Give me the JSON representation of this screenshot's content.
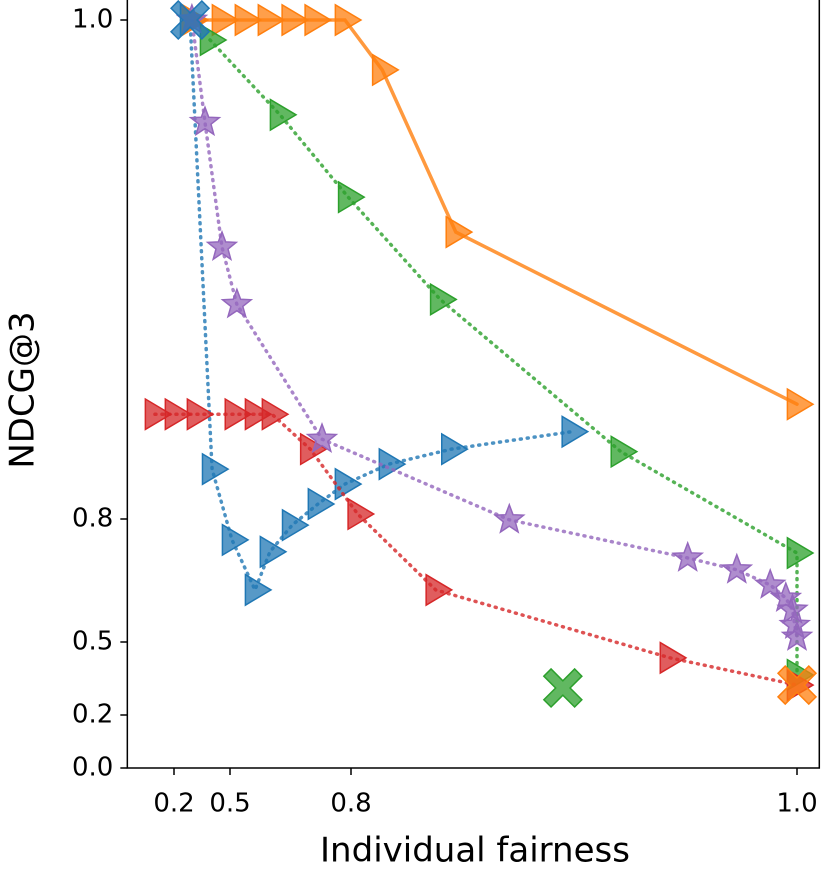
{
  "chart_data": {
    "type": "line",
    "xlabel": "Individual fairness",
    "ylabel": "NDCG@3",
    "xlim": [
      -0.05,
      1.01
    ],
    "ylim": [
      0,
      1.01
    ],
    "xticks": [
      0.2,
      0.5,
      0.8,
      {
        "value": 1,
        "label": "1.0"
      }
    ],
    "yticks": [
      {
        "value": 0,
        "label": "0.0"
      },
      0.2,
      0.5,
      0.8,
      {
        "value": 1,
        "label": "1.0"
      }
    ],
    "series": [
      {
        "color": "#1f77b4",
        "linestyle": "dotted",
        "marker": "triangle",
        "x": [
          0.286,
          0.404,
          0.505,
          0.562,
          0.599,
          0.654,
          0.718,
          0.785,
          0.817,
          0.845,
          0.899
        ],
        "values": [
          1.0,
          0.82,
          0.749,
          0.627,
          0.72,
          0.785,
          0.806,
          0.814,
          0.822,
          0.828,
          0.835
        ]
      },
      {
        "color": "#ff7f0e",
        "linestyle": "solid",
        "marker": "triangle",
        "x": [
          0.296,
          0.457,
          0.537,
          0.594,
          0.653,
          0.71,
          0.785,
          0.814,
          0.847,
          1.0
        ],
        "values": [
          1.0,
          1.0,
          1.0,
          1.0,
          1.0,
          1.0,
          1.0,
          0.98,
          0.915,
          0.846
        ]
      },
      {
        "color": "#2ca02c",
        "linestyle": "dotted",
        "marker": "triangle",
        "x": [
          0.393,
          0.624,
          0.793,
          0.84,
          0.921,
          1.0,
          1.0
        ],
        "values": [
          0.992,
          0.962,
          0.929,
          0.888,
          0.827,
          0.717,
          0.365
        ]
      },
      {
        "color": "#d62728",
        "linestyle": "dotted",
        "marker": "triangle",
        "x": [
          0.098,
          0.205,
          0.323,
          0.512,
          0.562,
          0.604,
          0.699,
          0.803,
          0.838,
          0.943,
          1.0
        ],
        "values": [
          0.842,
          0.842,
          0.842,
          0.842,
          0.842,
          0.842,
          0.828,
          0.802,
          0.627,
          0.435,
          0.323
        ]
      },
      {
        "color": "#9467bd",
        "linestyle": "dotted",
        "marker": "star",
        "x": [
          0.296,
          0.366,
          0.457,
          0.517,
          0.728,
          0.871,
          0.951,
          0.973,
          0.988,
          0.995,
          0.998,
          0.999,
          1.0
        ],
        "values": [
          1.0,
          0.959,
          0.909,
          0.886,
          0.832,
          0.798,
          0.705,
          0.676,
          0.639,
          0.607,
          0.578,
          0.541,
          0.512
        ]
      },
      {
        "color": "#1f77b4",
        "linestyle": "none",
        "marker": "x",
        "x": [
          0.286
        ],
        "values": [
          1.0
        ]
      },
      {
        "color": "#ff7f0e",
        "linestyle": "none",
        "marker": "x",
        "x": [
          1.0
        ],
        "values": [
          0.323
        ]
      },
      {
        "color": "#2ca02c",
        "linestyle": "none",
        "marker": "x",
        "x": [
          0.895
        ],
        "values": [
          0.311
        ]
      }
    ]
  }
}
